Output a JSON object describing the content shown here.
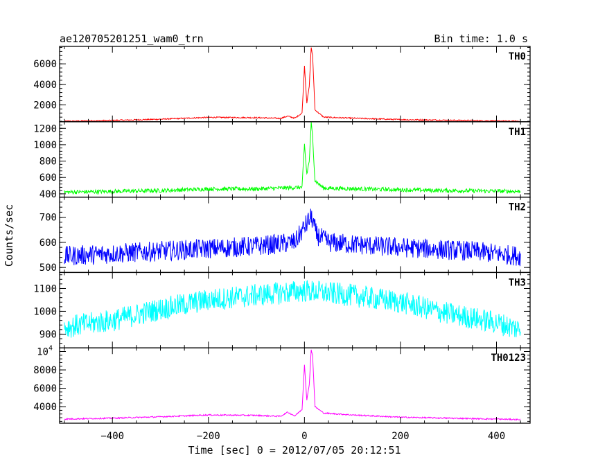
{
  "chart_data": {
    "type": "line",
    "title": "ae120705201251_wam0_trn",
    "subtitle": "Bin time: 1.0 s",
    "xlabel": "Time [sec] 0 = 2012/07/05 20:12:51",
    "ylabel": "Counts/sec",
    "xlim": [
      -510,
      470
    ],
    "x_ticks": [
      -400,
      -200,
      0,
      200,
      400
    ],
    "grid": false,
    "bin_time_s": 1.0,
    "panels": [
      {
        "name": "TH0",
        "color": "#ff0000",
        "ylim": [
          350,
          7700
        ],
        "y_ticks": [
          2000,
          4000,
          6000
        ],
        "y_tick_labels": [
          "2000",
          "4000",
          "6000"
        ],
        "baseline": [
          [
            -500,
            400
          ],
          [
            -400,
            480
          ],
          [
            -300,
            600
          ],
          [
            -200,
            780
          ],
          [
            -100,
            750
          ],
          [
            -50,
            680
          ],
          [
            -35,
            900
          ],
          [
            -20,
            700
          ],
          [
            -5,
            1200
          ],
          [
            0,
            5800
          ],
          [
            5,
            2200
          ],
          [
            10,
            3800
          ],
          [
            14,
            7600
          ],
          [
            17,
            6800
          ],
          [
            22,
            1500
          ],
          [
            40,
            800
          ],
          [
            100,
            700
          ],
          [
            200,
            560
          ],
          [
            300,
            500
          ],
          [
            450,
            400
          ]
        ],
        "noise": 60
      },
      {
        "name": "TH1",
        "color": "#00ff00",
        "ylim": [
          360,
          1280
        ],
        "y_ticks": [
          400,
          600,
          800,
          1000,
          1200
        ],
        "y_tick_labels": [
          "400",
          "600",
          "800",
          "1000",
          "1200"
        ],
        "baseline": [
          [
            -500,
            420
          ],
          [
            -300,
            440
          ],
          [
            -200,
            460
          ],
          [
            -100,
            460
          ],
          [
            -5,
            480
          ],
          [
            0,
            1000
          ],
          [
            5,
            640
          ],
          [
            10,
            800
          ],
          [
            14,
            1260
          ],
          [
            17,
            1100
          ],
          [
            22,
            560
          ],
          [
            40,
            470
          ],
          [
            200,
            450
          ],
          [
            300,
            440
          ],
          [
            450,
            430
          ]
        ],
        "noise": 25
      },
      {
        "name": "TH2",
        "color": "#0000ff",
        "ylim": [
          480,
          780
        ],
        "y_ticks": [
          500,
          600,
          700
        ],
        "y_tick_labels": [
          "500",
          "600",
          "700"
        ],
        "baseline": [
          [
            -500,
            545
          ],
          [
            -400,
            555
          ],
          [
            -300,
            565
          ],
          [
            -200,
            575
          ],
          [
            -100,
            585
          ],
          [
            -20,
            600
          ],
          [
            0,
            660
          ],
          [
            10,
            690
          ],
          [
            15,
            700
          ],
          [
            25,
            630
          ],
          [
            50,
            600
          ],
          [
            150,
            585
          ],
          [
            250,
            575
          ],
          [
            350,
            565
          ],
          [
            450,
            545
          ]
        ],
        "noise": 40
      },
      {
        "name": "TH3",
        "color": "#00ffff",
        "ylim": [
          840,
          1170
        ],
        "y_ticks": [
          900,
          1000,
          1100
        ],
        "y_tick_labels": [
          "900",
          "1000",
          "1100"
        ],
        "baseline": [
          [
            -500,
            930
          ],
          [
            -400,
            960
          ],
          [
            -300,
            1010
          ],
          [
            -200,
            1050
          ],
          [
            -100,
            1070
          ],
          [
            0,
            1090
          ],
          [
            100,
            1070
          ],
          [
            200,
            1040
          ],
          [
            300,
            990
          ],
          [
            400,
            950
          ],
          [
            450,
            920
          ]
        ],
        "noise": 50
      },
      {
        "name": "TH0123",
        "color": "#ff00ff",
        "ylim": [
          2200,
          10400
        ],
        "y_ticks": [
          4000,
          6000,
          8000,
          10000
        ],
        "y_tick_labels": [
          "4000",
          "6000",
          "8000",
          "10^4"
        ],
        "baseline": [
          [
            -500,
            2650
          ],
          [
            -400,
            2750
          ],
          [
            -300,
            2900
          ],
          [
            -200,
            3100
          ],
          [
            -100,
            3050
          ],
          [
            -50,
            2950
          ],
          [
            -35,
            3400
          ],
          [
            -20,
            3000
          ],
          [
            -5,
            3700
          ],
          [
            0,
            8600
          ],
          [
            5,
            4700
          ],
          [
            10,
            6400
          ],
          [
            14,
            10200
          ],
          [
            17,
            9600
          ],
          [
            22,
            4000
          ],
          [
            40,
            3300
          ],
          [
            100,
            3100
          ],
          [
            200,
            2850
          ],
          [
            300,
            2750
          ],
          [
            450,
            2600
          ]
        ],
        "noise": 70
      }
    ]
  }
}
